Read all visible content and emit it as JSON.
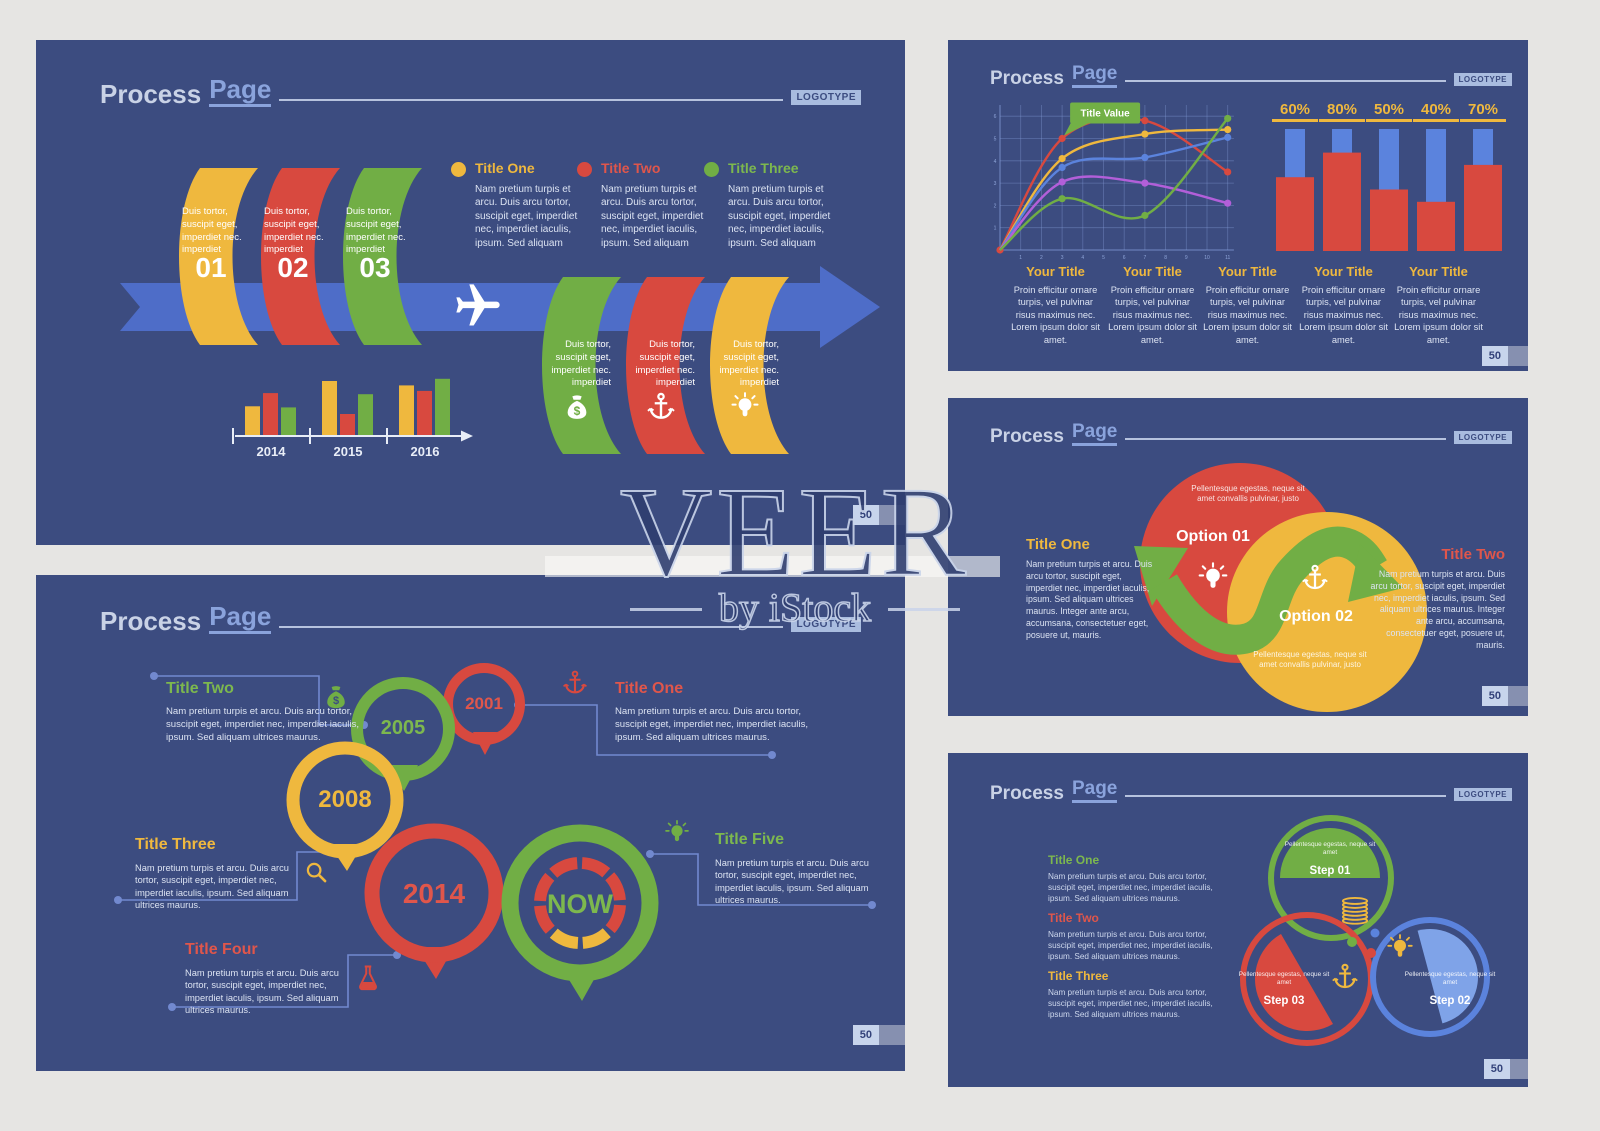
{
  "watermark": {
    "brand": "VEER",
    "byline": "by iStock"
  },
  "common": {
    "header": {
      "word1": "Process",
      "word2": "Page",
      "logotype": "LOGOTYPE"
    },
    "page_number": "50"
  },
  "icons": {
    "dollar": "$"
  },
  "slide1": {
    "legend": [
      {
        "title": "Title One",
        "text": "Nam pretium turpis et arcu. Duis arcu tortor, suscipit eget, imperdiet nec, imperdiet iaculis, ipsum. Sed aliquam"
      },
      {
        "title": "Title Two",
        "text": "Nam pretium turpis et arcu. Duis arcu tortor, suscipit eget, imperdiet nec, imperdiet iaculis, ipsum. Sed aliquam"
      },
      {
        "title": "Title Three",
        "text": "Nam pretium turpis et arcu. Duis arcu tortor, suscipit eget, imperdiet nec, imperdiet iaculis, ipsum. Sed aliquam"
      }
    ],
    "steps": [
      {
        "num": "01",
        "text": "Duis tortor, suscipit eget, imperdiet nec. imperdiet"
      },
      {
        "num": "02",
        "text": "Duis tortor, suscipit eget, imperdiet nec. imperdiet"
      },
      {
        "num": "03",
        "text": "Duis tortor, suscipit eget, imperdiet nec. imperdiet"
      }
    ],
    "stages": [
      {
        "icon": "money-bag",
        "text": "Duis tortor, suscipit eget, imperdiet nec. imperdiet"
      },
      {
        "icon": "anchor",
        "text": "Duis tortor, suscipit eget, imperdiet nec. imperdiet"
      },
      {
        "icon": "bulb",
        "text": "Duis tortor, suscipit eget, imperdiet nec. imperdiet"
      }
    ]
  },
  "slide2": {
    "columns": [
      {
        "title": "Your Title",
        "text": "Proin efficitur ornare turpis, vel pulvinar risus maximus nec. Lorem ipsum dolor sit amet."
      },
      {
        "title": "Your Title",
        "text": "Proin efficitur ornare turpis, vel pulvinar risus maximus nec. Lorem ipsum dolor sit amet."
      },
      {
        "title": "Your Title",
        "text": "Proin efficitur ornare turpis, vel pulvinar risus maximus nec. Lorem ipsum dolor sit amet."
      },
      {
        "title": "Your Title",
        "text": "Proin efficitur ornare turpis, vel pulvinar risus maximus nec. Lorem ipsum dolor sit amet."
      },
      {
        "title": "Your Title",
        "text": "Proin efficitur ornare turpis, vel pulvinar risus maximus nec. Lorem ipsum dolor sit amet."
      }
    ]
  },
  "slide3": {
    "left": {
      "title": "Title One",
      "text": "Nam pretium turpis et arcu. Duis arcu tortor, suscipit eget, imperdiet nec, imperdiet iaculis, ipsum. Sed aliquam ultrices maurus. Integer ante arcu, accumsana, consectetuer eget, posuere ut, mauris."
    },
    "right": {
      "title": "Title Two",
      "text": "Nam pretium turpis et arcu. Duis arcu tortor, suscipit eget, imperdiet nec, imperdiet iaculis, ipsum. Sed aliquam ultrices maurus. Integer ante arcu, accumsana, consectetuer eget, posuere ut, mauris."
    },
    "options": [
      {
        "label": "Option 01",
        "text": "Pellentesque egestas, neque sit amet convallis pulvinar, justo"
      },
      {
        "label": "Option 02",
        "text": "Pellentesque egestas, neque sit amet convallis pulvinar, justo"
      }
    ]
  },
  "slide4": {
    "milestones": [
      {
        "year": "2005"
      },
      {
        "year": "2001"
      },
      {
        "year": "2008"
      },
      {
        "year": "2014"
      },
      {
        "year": "NOW"
      }
    ],
    "entries": [
      {
        "title": "Title Two",
        "text": "Nam pretium turpis et arcu. Duis arcu tortor, suscipit eget, imperdiet nec, imperdiet iaculis, ipsum. Sed aliquam ultrices maurus."
      },
      {
        "title": "Title One",
        "text": "Nam pretium turpis et arcu. Duis arcu tortor, suscipit eget, imperdiet nec, imperdiet iaculis, ipsum. Sed aliquam ultrices maurus."
      },
      {
        "title": "Title Three",
        "text": "Nam pretium turpis et arcu. Duis arcu tortor, suscipit eget, imperdiet nec, imperdiet iaculis, ipsum. Sed aliquam ultrices maurus."
      },
      {
        "title": "Title Four",
        "text": "Nam pretium turpis et arcu. Duis arcu tortor, suscipit eget, imperdiet nec, imperdiet iaculis, ipsum. Sed aliquam ultrices maurus."
      },
      {
        "title": "Title Five",
        "text": "Nam pretium turpis et arcu. Duis arcu tortor, suscipit eget, imperdiet nec, imperdiet iaculis, ipsum. Sed aliquam ultrices maurus."
      }
    ]
  },
  "slide5": {
    "entries": [
      {
        "title": "Title One",
        "text": "Nam pretium turpis et arcu. Duis arcu tortor, suscipit eget, imperdiet nec, imperdiet iaculis, ipsum. Sed aliquam ultrices maurus."
      },
      {
        "title": "Title Two",
        "text": "Nam pretium turpis et arcu. Duis arcu tortor, suscipit eget, imperdiet nec, imperdiet iaculis, ipsum. Sed aliquam ultrices maurus."
      },
      {
        "title": "Title Three",
        "text": "Nam pretium turpis et arcu. Duis arcu tortor, suscipit eget, imperdiet nec, imperdiet iaculis, ipsum. Sed aliquam ultrices maurus."
      }
    ],
    "steps": [
      {
        "label": "Step 01",
        "text": "Pellentesque egestas, neque sit amet"
      },
      {
        "label": "Step 02",
        "text": "Pellentesque egestas, neque sit amet"
      },
      {
        "label": "Step 03",
        "text": "Pellentesque egestas, neque sit amet"
      }
    ]
  },
  "chart_data": [
    {
      "id": "years-bars",
      "type": "bar",
      "categories": [
        "2014",
        "2015",
        "2016"
      ],
      "series": [
        {
          "name": "yellow",
          "color": "#efb83e",
          "values": [
            2.7,
            5.0,
            4.6
          ]
        },
        {
          "name": "red",
          "color": "#d8493f",
          "values": [
            3.9,
            2.0,
            4.1
          ]
        },
        {
          "name": "green",
          "color": "#71ae45",
          "values": [
            2.6,
            3.8,
            5.2
          ]
        }
      ],
      "ylim": [
        0,
        6
      ],
      "xlabel": "timeline with arrow"
    },
    {
      "id": "trend-lines",
      "type": "line",
      "x": [
        0,
        3,
        7,
        11
      ],
      "xlim": [
        0,
        11.5
      ],
      "ylim": [
        0,
        6.5
      ],
      "xticks": [
        1,
        2,
        3,
        4,
        5,
        6,
        7,
        8,
        9,
        10,
        11
      ],
      "yticks": [
        1,
        2,
        3,
        4,
        5,
        6
      ],
      "grid": true,
      "annotation": {
        "text": "Title Value",
        "at": [
          3,
          5
        ]
      },
      "series": [
        {
          "name": "red",
          "color": "#d8493f",
          "values": [
            0,
            5.0,
            5.8,
            3.5
          ]
        },
        {
          "name": "yellow",
          "color": "#efb83e",
          "values": [
            0,
            4.1,
            5.2,
            5.4
          ]
        },
        {
          "name": "blue",
          "color": "#5b83dd",
          "values": [
            0,
            3.7,
            4.15,
            5.05
          ]
        },
        {
          "name": "purple",
          "color": "#b25fd9",
          "values": [
            0,
            3.05,
            3.0,
            2.1
          ]
        },
        {
          "name": "green",
          "color": "#71ae45",
          "values": [
            0,
            2.3,
            1.55,
            5.9
          ]
        }
      ]
    },
    {
      "id": "percent-bars",
      "type": "bar",
      "labels": [
        "60%",
        "80%",
        "50%",
        "40%",
        "70%"
      ],
      "values": [
        60,
        80,
        50,
        40,
        70
      ],
      "ylim": [
        0,
        100
      ]
    }
  ]
}
